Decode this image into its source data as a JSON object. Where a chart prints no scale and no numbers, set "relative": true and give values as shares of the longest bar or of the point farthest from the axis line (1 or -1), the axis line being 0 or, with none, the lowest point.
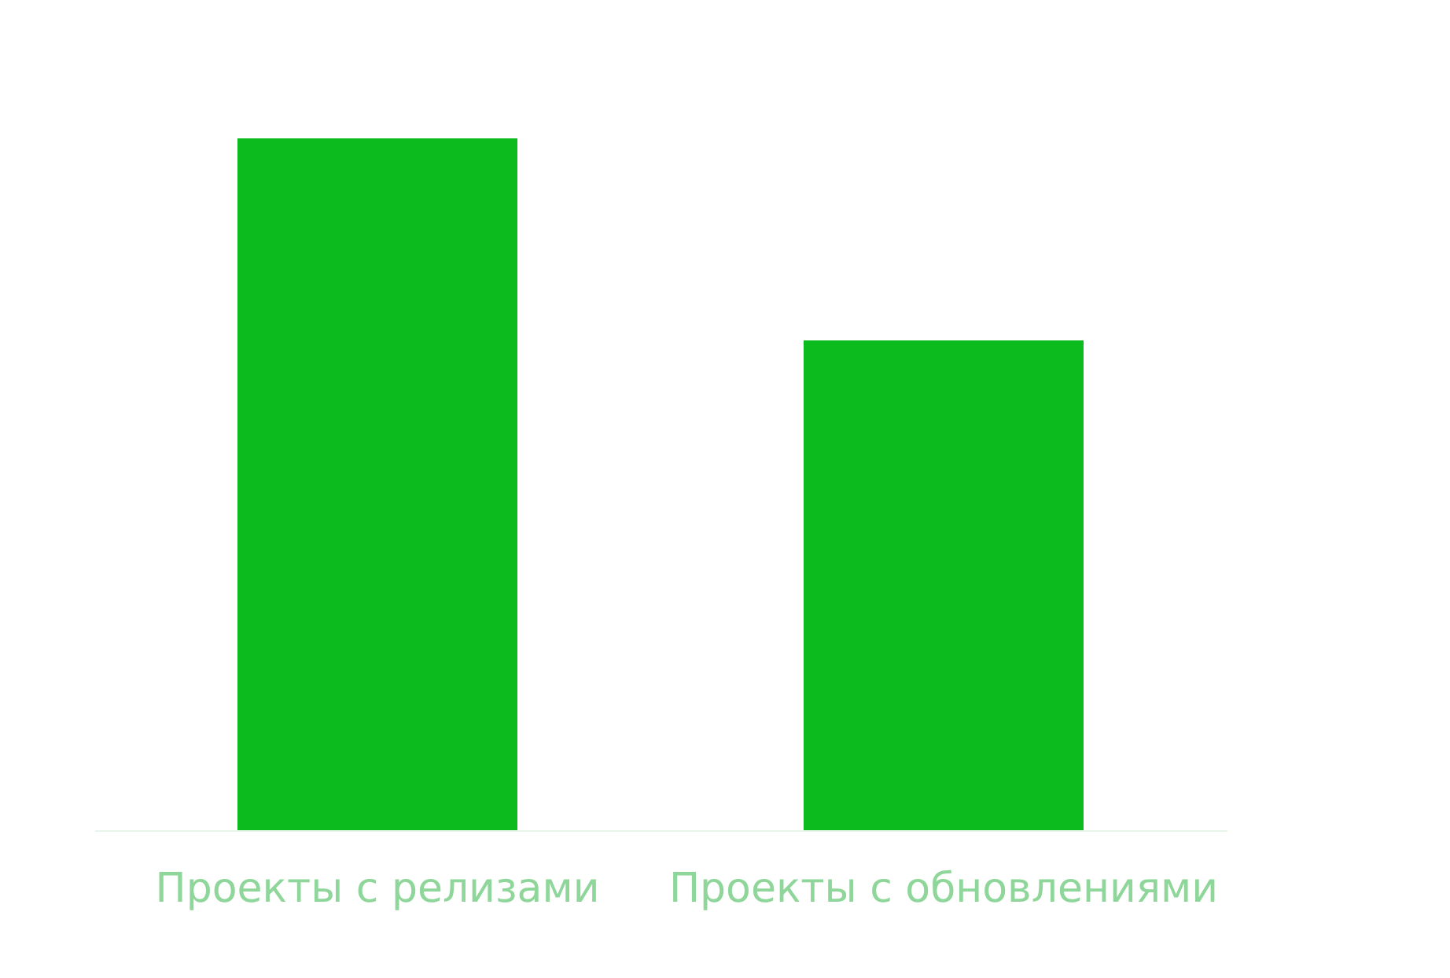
{
  "chart_data": {
    "type": "bar",
    "relative": true,
    "categories": [
      "Проекты с релизами",
      "Проекты с обновлениями"
    ],
    "values": [
      1,
      0.708
    ],
    "color": "#0cbc1f",
    "grid": false
  }
}
